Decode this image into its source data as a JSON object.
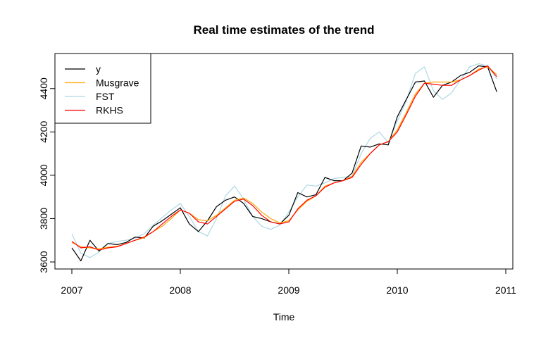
{
  "chart_data": {
    "type": "line",
    "title": "Real time estimates of the trend",
    "xlabel": "Time",
    "ylabel": "",
    "xlim": [
      2007,
      2011
    ],
    "ylim": [
      3600,
      4500
    ],
    "x_ticks": [
      "2007",
      "2008",
      "2009",
      "2010",
      "2011"
    ],
    "y_ticks": [
      "3600",
      "3800",
      "4000",
      "4200",
      "4400"
    ],
    "grid": false,
    "legend_position": "top-left",
    "x": [
      2007.0,
      2007.083,
      2007.167,
      2007.25,
      2007.333,
      2007.417,
      2007.5,
      2007.583,
      2007.667,
      2007.75,
      2007.833,
      2007.917,
      2008.0,
      2008.083,
      2008.167,
      2008.25,
      2008.333,
      2008.417,
      2008.5,
      2008.583,
      2008.667,
      2008.75,
      2008.833,
      2008.917,
      2009.0,
      2009.083,
      2009.167,
      2009.25,
      2009.333,
      2009.417,
      2009.5,
      2009.583,
      2009.667,
      2009.75,
      2009.833,
      2009.917,
      2010.0,
      2010.083,
      2010.167,
      2010.25,
      2010.333,
      2010.417,
      2010.5,
      2010.583,
      2010.667,
      2010.75,
      2010.833,
      2010.917
    ],
    "series": [
      {
        "name": "y",
        "color": "#000000",
        "values": [
          3665,
          3605,
          3700,
          3650,
          3685,
          3680,
          3690,
          3715,
          3710,
          3765,
          3790,
          3820,
          3850,
          3775,
          3740,
          3790,
          3855,
          3885,
          3900,
          3870,
          3810,
          3800,
          3785,
          3775,
          3815,
          3920,
          3900,
          3910,
          3990,
          3975,
          3975,
          4010,
          4135,
          4130,
          4145,
          4140,
          4270,
          4350,
          4430,
          4435,
          4360,
          4415,
          4430,
          4460,
          4475,
          4505,
          4500,
          4385
        ]
      },
      {
        "name": "Musgrave",
        "color": "#FFA500",
        "values": [
          3690,
          3670,
          3665,
          3660,
          3668,
          3672,
          3685,
          3700,
          3712,
          3740,
          3765,
          3800,
          3840,
          3825,
          3795,
          3790,
          3815,
          3850,
          3885,
          3895,
          3870,
          3830,
          3800,
          3780,
          3790,
          3840,
          3880,
          3905,
          3950,
          3965,
          3975,
          3995,
          4060,
          4100,
          4140,
          4155,
          4210,
          4290,
          4375,
          4425,
          4430,
          4430,
          4430,
          4440,
          4460,
          4490,
          4500,
          4465
        ]
      },
      {
        "name": "FST",
        "color": "#ADD8E6",
        "values": [
          3730,
          3640,
          3620,
          3645,
          3685,
          3695,
          3700,
          3710,
          3730,
          3770,
          3805,
          3840,
          3870,
          3810,
          3740,
          3720,
          3800,
          3905,
          3950,
          3890,
          3810,
          3765,
          3750,
          3770,
          3830,
          3900,
          3955,
          3950,
          3965,
          3985,
          3990,
          3995,
          4100,
          4170,
          4200,
          4150,
          4250,
          4345,
          4470,
          4500,
          4390,
          4350,
          4380,
          4440,
          4500,
          4515,
          4505,
          4445
        ]
      },
      {
        "name": "RKHS",
        "color": "#FF0000",
        "values": [
          3695,
          3665,
          3670,
          3655,
          3665,
          3670,
          3685,
          3700,
          3715,
          3740,
          3775,
          3810,
          3840,
          3825,
          3785,
          3775,
          3810,
          3845,
          3880,
          3890,
          3860,
          3815,
          3785,
          3775,
          3785,
          3845,
          3885,
          3905,
          3945,
          3965,
          3975,
          3990,
          4050,
          4100,
          4140,
          4155,
          4200,
          4280,
          4365,
          4425,
          4420,
          4415,
          4415,
          4440,
          4460,
          4485,
          4505,
          4455
        ]
      }
    ]
  }
}
